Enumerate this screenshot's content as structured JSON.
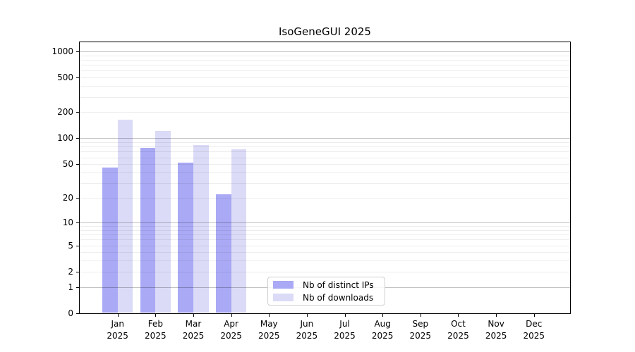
{
  "chart_data": {
    "type": "bar",
    "title": "IsoGeneGUI 2025",
    "year_label": "2025",
    "months": [
      "Jan",
      "Feb",
      "Mar",
      "Apr",
      "May",
      "Jun",
      "Jul",
      "Aug",
      "Sep",
      "Oct",
      "Nov",
      "Dec"
    ],
    "series": [
      {
        "name": "Nb of distinct IPs",
        "color": "#a9a9f5",
        "values": [
          46,
          78,
          52,
          22,
          0,
          0,
          0,
          0,
          0,
          0,
          0,
          0
        ]
      },
      {
        "name": "Nb of downloads",
        "color": "#dbdbf7",
        "values": [
          165,
          122,
          84,
          74,
          0,
          0,
          0,
          0,
          0,
          0,
          0,
          0
        ]
      }
    ],
    "y_ticks": [
      0,
      1,
      2,
      5,
      10,
      20,
      50,
      100,
      200,
      500,
      1000
    ],
    "y_major_gridlines": [
      1,
      10,
      100,
      1000
    ],
    "scale": "log1p",
    "ylim": [
      0,
      1000
    ],
    "grid": "horizontal",
    "legend_position": "inside bottom, left of center",
    "xlabel": "",
    "ylabel": ""
  },
  "colors": {
    "background": "#ffffff",
    "axis": "#000000",
    "major_grid": "#c2c2c2",
    "minor_grid": "#ededed",
    "legend_border": "#cfcfcf"
  }
}
